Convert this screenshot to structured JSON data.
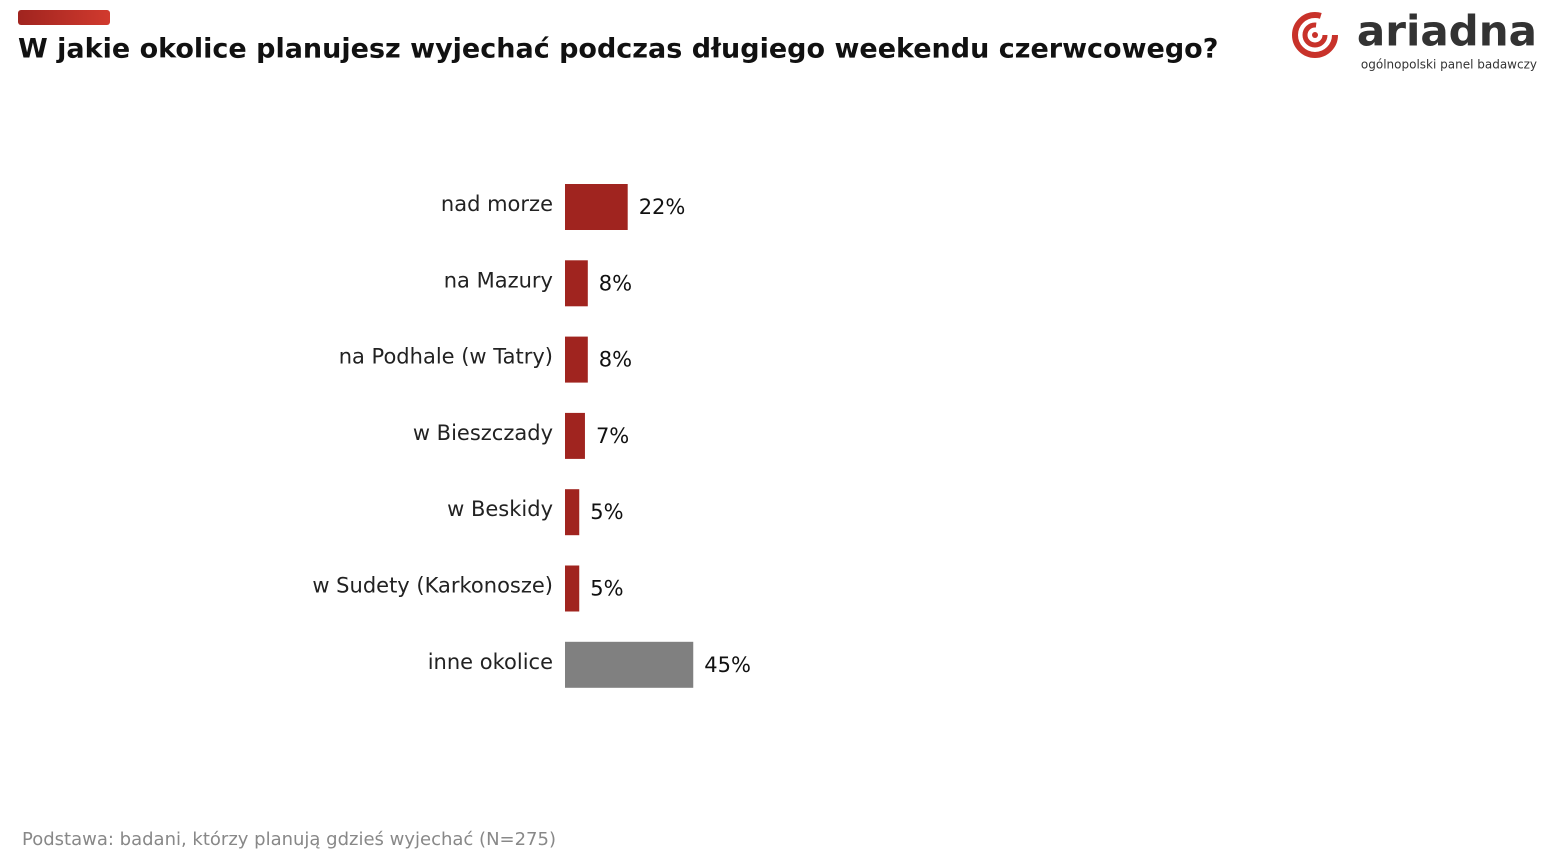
{
  "brand": {
    "name": "ariadna",
    "tagline": "ogólnopolski panel badawczy"
  },
  "chart_data": {
    "type": "bar",
    "orientation": "horizontal",
    "title": "W jakie okolice planujesz wyjechać podczas długiego weekendu czerwcowego?",
    "categories": [
      "nad morze",
      "na Mazury",
      "na Podhale (w Tatry)",
      "w Bieszczady",
      "w Beskidy",
      "w Sudety (Karkonosze)",
      "inne okolice"
    ],
    "values": [
      22,
      8,
      8,
      7,
      5,
      5,
      45
    ],
    "value_labels": [
      "22%",
      "8%",
      "8%",
      "7%",
      "5%",
      "5%",
      "45%"
    ],
    "colors": [
      "#a0241f",
      "#a0241f",
      "#a0241f",
      "#a0241f",
      "#a0241f",
      "#a0241f",
      "#808080"
    ],
    "footnote": "Podstawa: badani, którzy planują gdzieś wyjechać (N=275)"
  }
}
